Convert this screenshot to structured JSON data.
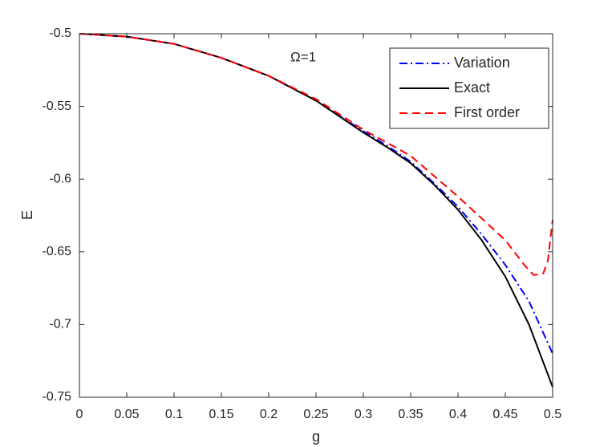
{
  "chart_data": {
    "type": "line",
    "xlabel": "g",
    "ylabel": "E",
    "annotation": "Ω=1",
    "xlim": [
      0,
      0.5
    ],
    "ylim": [
      -0.75,
      -0.5
    ],
    "xticks": [
      0,
      0.05,
      0.1,
      0.15,
      0.2,
      0.25,
      0.3,
      0.35,
      0.4,
      0.45,
      0.5
    ],
    "yticks": [
      -0.75,
      -0.7,
      -0.65,
      -0.6,
      -0.55,
      -0.5
    ],
    "legend": "upper right",
    "series": [
      {
        "name": "Variation",
        "color": "#0000ff",
        "dash": "dashdot",
        "x": [
          0,
          0.05,
          0.1,
          0.15,
          0.2,
          0.25,
          0.3,
          0.325,
          0.35,
          0.375,
          0.4,
          0.425,
          0.45,
          0.475,
          0.5
        ],
        "values": [
          -0.5,
          -0.502,
          -0.507,
          -0.5166,
          -0.529,
          -0.546,
          -0.567,
          -0.577,
          -0.588,
          -0.603,
          -0.619,
          -0.638,
          -0.659,
          -0.684,
          -0.72
        ]
      },
      {
        "name": "Exact",
        "color": "#000000",
        "dash": "solid",
        "x": [
          0,
          0.05,
          0.1,
          0.15,
          0.2,
          0.25,
          0.3,
          0.325,
          0.35,
          0.375,
          0.4,
          0.425,
          0.45,
          0.475,
          0.5
        ],
        "values": [
          -0.5,
          -0.502,
          -0.507,
          -0.5166,
          -0.529,
          -0.546,
          -0.568,
          -0.578,
          -0.589,
          -0.604,
          -0.621,
          -0.642,
          -0.667,
          -0.7,
          -0.743
        ]
      },
      {
        "name": "First order",
        "color": "#ff0000",
        "dash": "dashed",
        "x": [
          0,
          0.05,
          0.1,
          0.15,
          0.2,
          0.25,
          0.3,
          0.35,
          0.4,
          0.45,
          0.47,
          0.48,
          0.49,
          0.495,
          0.5
        ],
        "values": [
          -0.5,
          -0.502,
          -0.507,
          -0.5166,
          -0.529,
          -0.545,
          -0.566,
          -0.584,
          -0.612,
          -0.642,
          -0.659,
          -0.666,
          -0.665,
          -0.656,
          -0.628
        ]
      }
    ]
  }
}
